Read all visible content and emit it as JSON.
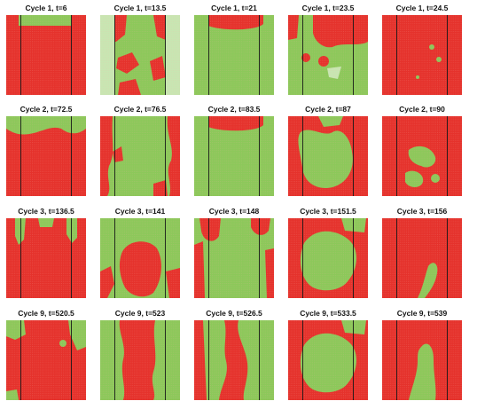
{
  "colors": {
    "red": "#e5322c",
    "green": "#8cc85a",
    "pale_green": "#c8e6b2",
    "divider": "#1a1a1a",
    "dots": "#f6b2a8"
  },
  "rows": [
    {
      "panels": [
        {
          "title": "Cycle 1, t=6",
          "pattern": "green-top-notch"
        },
        {
          "title": "Cycle 1, t=13.5",
          "pattern": "green-with-pale-sides"
        },
        {
          "title": "Cycle 1, t=21",
          "pattern": "green-red-top-band"
        },
        {
          "title": "Cycle 1, t=23.5",
          "pattern": "green-red-top-patches"
        },
        {
          "title": "Cycle 1, t=24.5",
          "pattern": "red-few-green-specks"
        }
      ]
    },
    {
      "panels": [
        {
          "title": "Cycle 2, t=72.5",
          "pattern": "red-green-top-cap"
        },
        {
          "title": "Cycle 2, t=76.5",
          "pattern": "green-red-edges"
        },
        {
          "title": "Cycle 2, t=83.5",
          "pattern": "green-red-top-band"
        },
        {
          "title": "Cycle 2, t=87",
          "pattern": "red-green-center-blob"
        },
        {
          "title": "Cycle 2, t=90",
          "pattern": "red-green-small-blobs"
        }
      ]
    },
    {
      "panels": [
        {
          "title": "Cycle 3, t=136.5",
          "pattern": "red-green-top-fingers"
        },
        {
          "title": "Cycle 3, t=141",
          "pattern": "green-red-center"
        },
        {
          "title": "Cycle 3, t=148",
          "pattern": "green-red-top-drops"
        },
        {
          "title": "Cycle 3, t=151.5",
          "pattern": "red-green-large-blob"
        },
        {
          "title": "Cycle 3, t=156",
          "pattern": "red-green-thin-strand"
        }
      ]
    },
    {
      "panels": [
        {
          "title": "Cycle 9, t=520.5",
          "pattern": "red-green-corner-patches"
        },
        {
          "title": "Cycle 9, t=523",
          "pattern": "green-red-column"
        },
        {
          "title": "Cycle 9, t=526.5",
          "pattern": "green-red-wavy-column"
        },
        {
          "title": "Cycle 9, t=533.5",
          "pattern": "red-green-large-blob"
        },
        {
          "title": "Cycle 9, t=539",
          "pattern": "red-green-vertical-finger"
        }
      ]
    }
  ]
}
